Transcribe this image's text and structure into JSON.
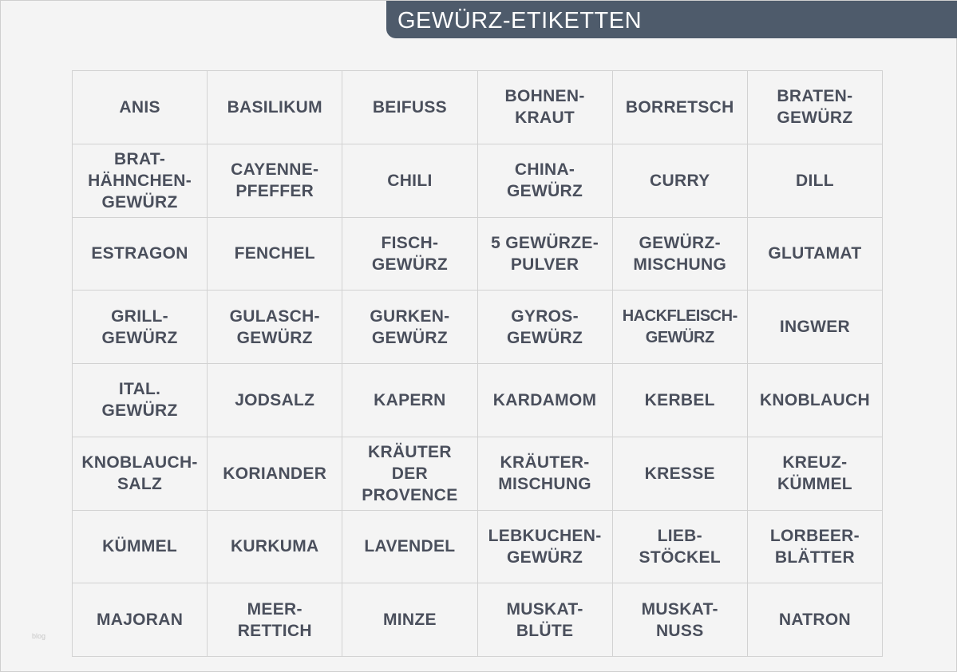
{
  "header": {
    "title": "GEWÜRZ-ETIKETTEN"
  },
  "watermark": "blog",
  "labels": [
    "ANIS",
    "BASILIKUM",
    "BEIFUSS",
    "BOHNEN-\nKRAUT",
    "BORRETSCH",
    "BRATEN-\nGEWÜRZ",
    "BRAT-\nHÄHNCHEN-\nGEWÜRZ",
    "CAYENNE-\nPFEFFER",
    "CHILI",
    "CHINA-\nGEWÜRZ",
    "CURRY",
    "DILL",
    "ESTRAGON",
    "FENCHEL",
    "FISCH-\nGEWÜRZ",
    "5 GEWÜRZE-\nPULVER",
    "GEWÜRZ-\nMISCHUNG",
    "GLUTAMAT",
    "GRILL-\nGEWÜRZ",
    "GULASCH-\nGEWÜRZ",
    "GURKEN-\nGEWÜRZ",
    "GYROS-\nGEWÜRZ",
    "HACKFLEISCH-\nGEWÜRZ",
    "INGWER",
    "ITAL.\nGEWÜRZ",
    "JODSALZ",
    "KAPERN",
    "KARDAMOM",
    "KERBEL",
    "KNOBLAUCH",
    "KNOBLAUCH-\nSALZ",
    "KORIANDER",
    "KRÄUTER\nDER\nPROVENCE",
    "KRÄUTER-\nMISCHUNG",
    "KRESSE",
    "KREUZ-\nKÜMMEL",
    "KÜMMEL",
    "KURKUMA",
    "LAVENDEL",
    "LEBKUCHEN-\nGEWÜRZ",
    "LIEB-\nSTÖCKEL",
    "LORBEER-\nBLÄTTER",
    "MAJORAN",
    "MEER-\nRETTICH",
    "MINZE",
    "MUSKAT-\nBLÜTE",
    "MUSKAT-\nNUSS",
    "NATRON"
  ]
}
